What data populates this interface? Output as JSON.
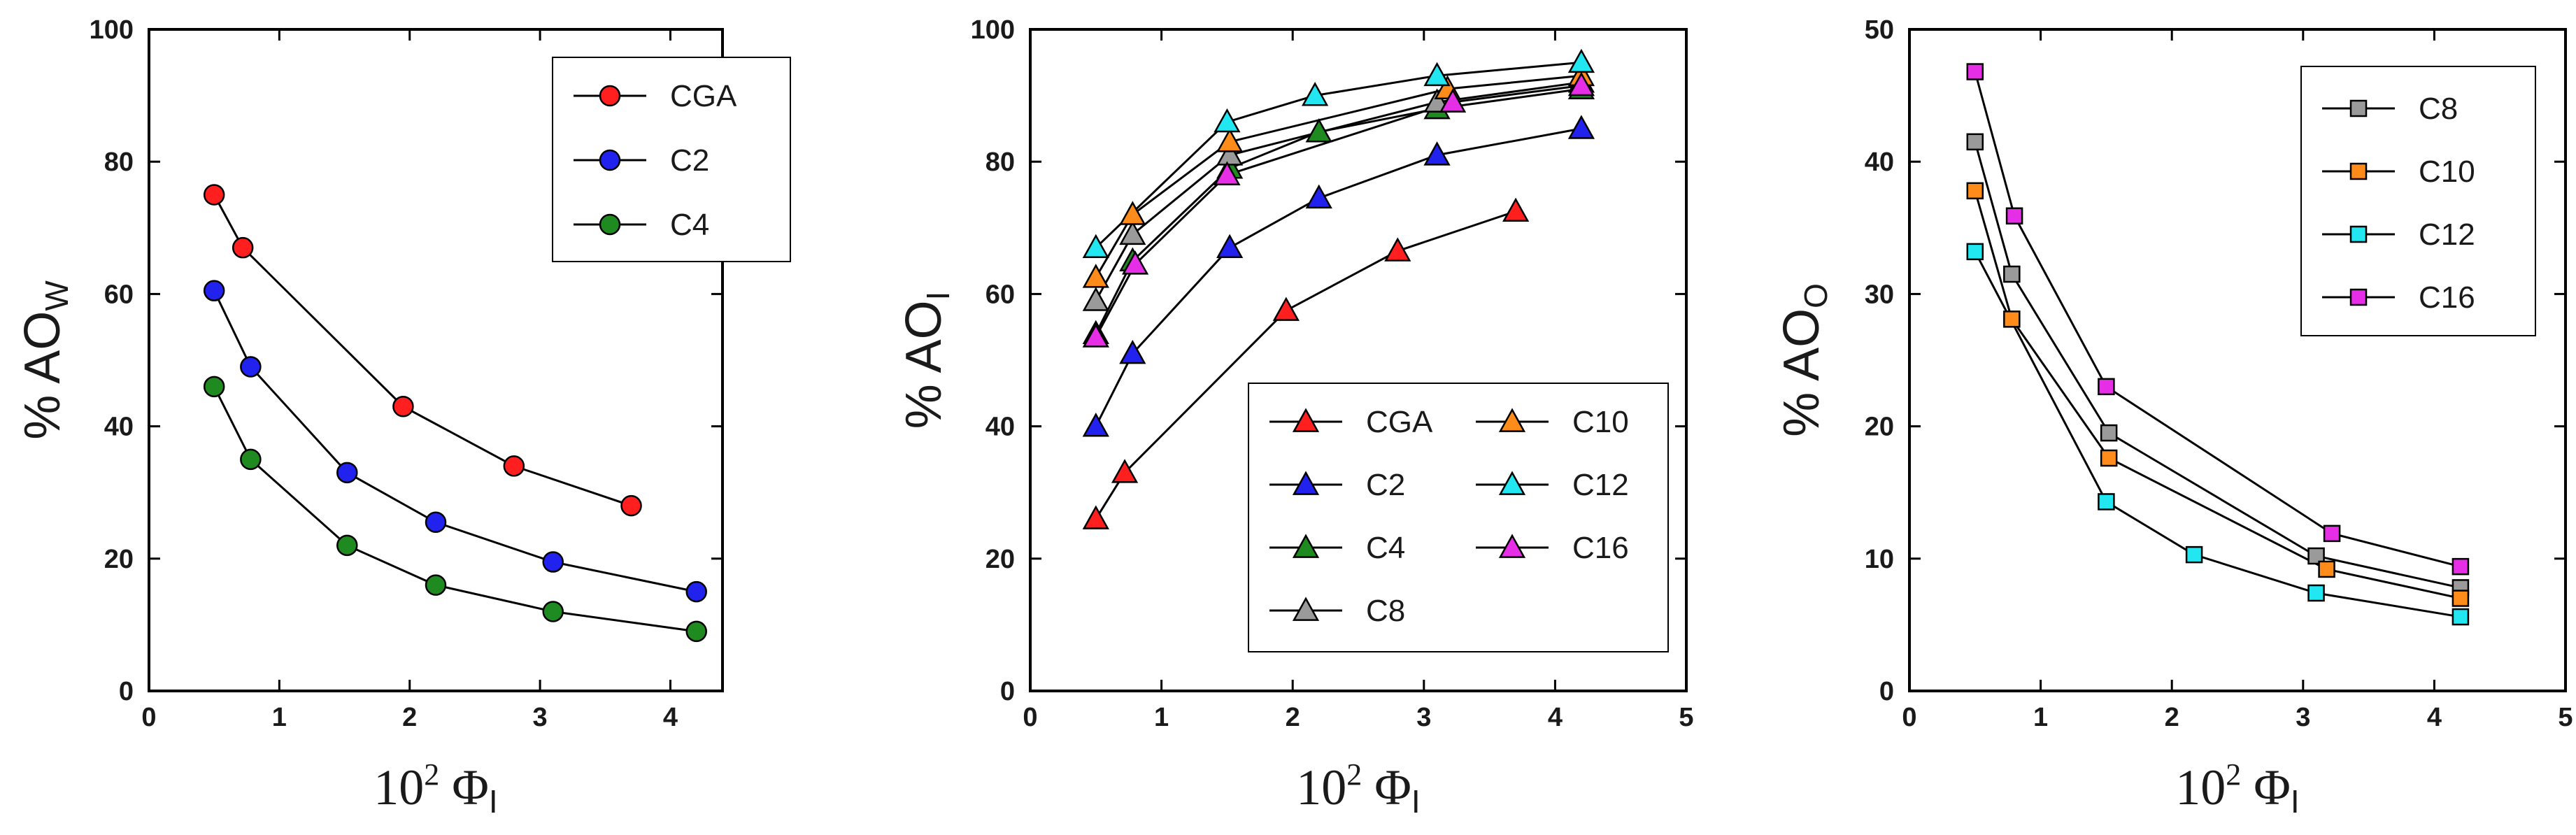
{
  "chart_data": [
    {
      "type": "scatter",
      "panel": "left",
      "ylabel_main": "% AO",
      "ylabel_sub": "W",
      "xlabel_main": "10",
      "xlabel_sup": "2",
      "xlabel_sym": " Φ",
      "xlabel_sub": "I",
      "xlim": [
        0,
        4.4
      ],
      "ylim": [
        0,
        100
      ],
      "xticks": [
        0,
        1,
        2,
        3,
        4
      ],
      "yticks": [
        0,
        20,
        40,
        60,
        80,
        100
      ],
      "marker": "circle",
      "legend_placement": "top-right",
      "series": [
        {
          "name": "CGA",
          "color": "#ff1f1f",
          "x": [
            0.5,
            0.72,
            1.95,
            2.8,
            3.7
          ],
          "y": [
            75,
            67,
            43,
            34,
            28
          ]
        },
        {
          "name": "C2",
          "color": "#2222ee",
          "x": [
            0.5,
            0.78,
            1.52,
            2.2,
            3.1,
            4.2
          ],
          "y": [
            60.5,
            49,
            33,
            25.5,
            19.5,
            15
          ]
        },
        {
          "name": "C4",
          "color": "#1f8a1f",
          "x": [
            0.5,
            0.78,
            1.52,
            2.2,
            3.1,
            4.2
          ],
          "y": [
            46,
            35,
            22,
            16,
            12,
            9
          ]
        }
      ]
    },
    {
      "type": "scatter",
      "panel": "middle",
      "ylabel_main": "% AO",
      "ylabel_sub": "I",
      "xlabel_main": "10",
      "xlabel_sup": "2",
      "xlabel_sym": " Φ",
      "xlabel_sub": "I",
      "xlim": [
        0,
        5
      ],
      "ylim": [
        0,
        100
      ],
      "xticks": [
        0,
        1,
        2,
        3,
        4,
        5
      ],
      "yticks": [
        0,
        20,
        40,
        60,
        80,
        100
      ],
      "marker": "triangle",
      "legend_placement": "bottom-right",
      "series": [
        {
          "name": "CGA",
          "color": "#ff1f1f",
          "x": [
            0.5,
            0.72,
            1.95,
            2.8,
            3.7
          ],
          "y": [
            26,
            33,
            57.5,
            66.5,
            72.5
          ]
        },
        {
          "name": "C2",
          "color": "#2222ee",
          "x": [
            0.5,
            0.78,
            1.52,
            2.2,
            3.1,
            4.2
          ],
          "y": [
            40,
            51,
            67,
            74.5,
            81,
            85
          ]
        },
        {
          "name": "C4",
          "color": "#1f8a1f",
          "x": [
            0.5,
            0.78,
            1.52,
            2.2,
            3.1,
            4.2
          ],
          "y": [
            54,
            65,
            79,
            84.5,
            88,
            91
          ]
        },
        {
          "name": "C8",
          "color": "#9a9a9a",
          "x": [
            0.5,
            0.78,
            1.52,
            3.1,
            4.2
          ],
          "y": [
            59,
            69,
            81,
            89,
            92
          ]
        },
        {
          "name": "C10",
          "color": "#ff8c1a",
          "x": [
            0.5,
            0.78,
            1.52,
            3.18,
            4.2
          ],
          "y": [
            62.5,
            72,
            83,
            91,
            93
          ]
        },
        {
          "name": "C12",
          "color": "#22e6f0",
          "x": [
            0.5,
            1.5,
            2.17,
            3.1,
            4.2
          ],
          "y": [
            67,
            86,
            90,
            93,
            95
          ]
        },
        {
          "name": "C16",
          "color": "#e62ee6",
          "x": [
            0.5,
            0.8,
            1.5,
            3.22,
            4.2
          ],
          "y": [
            53.5,
            64.5,
            78,
            89,
            91.5
          ]
        }
      ]
    },
    {
      "type": "scatter",
      "panel": "right",
      "ylabel_main": "% AO",
      "ylabel_sub": "O",
      "xlabel_main": "10",
      "xlabel_sup": "2",
      "xlabel_sym": " Φ",
      "xlabel_sub": "I",
      "xlim": [
        0,
        5
      ],
      "ylim": [
        0,
        50
      ],
      "xticks": [
        0,
        1,
        2,
        3,
        4,
        5
      ],
      "yticks": [
        0,
        10,
        20,
        30,
        40,
        50
      ],
      "marker": "square",
      "legend_placement": "top-right",
      "series": [
        {
          "name": "C8",
          "color": "#9a9a9a",
          "x": [
            0.5,
            0.78,
            1.52,
            3.1,
            4.2
          ],
          "y": [
            41.5,
            31.5,
            19.5,
            10.2,
            7.8
          ]
        },
        {
          "name": "C10",
          "color": "#ff8c1a",
          "x": [
            0.5,
            0.78,
            1.52,
            3.18,
            4.2
          ],
          "y": [
            37.8,
            28.1,
            17.6,
            9.2,
            7
          ]
        },
        {
          "name": "C12",
          "color": "#22e6f0",
          "x": [
            0.5,
            1.5,
            2.17,
            3.1,
            4.2
          ],
          "y": [
            33.2,
            14.3,
            10.3,
            7.4,
            5.6
          ]
        },
        {
          "name": "C16",
          "color": "#e62ee6",
          "x": [
            0.5,
            0.8,
            1.5,
            3.22,
            4.2
          ],
          "y": [
            46.8,
            35.9,
            23,
            11.9,
            9.4
          ]
        }
      ]
    }
  ]
}
